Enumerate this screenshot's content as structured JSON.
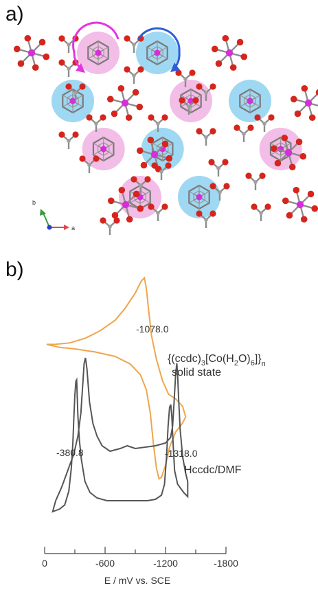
{
  "figure": {
    "panel_a_label": "a)",
    "panel_b_label": "b)"
  },
  "panel_a": {
    "axes_labels": {
      "b": "b",
      "a": "a"
    },
    "colors": {
      "oxygen": "#d6251c",
      "cobalt": "#d52fd9",
      "bond": "#8c8c8c",
      "pink_disc": "#f2bde6",
      "blue_disc": "#9fd8f2",
      "pink_arrow": "#e335e0",
      "blue_arrow": "#2b5fd9",
      "axis_b": "#3a9a3a",
      "axis_a": "#e04848",
      "axis_c": "#2a3fd0"
    },
    "discs": [
      {
        "color": "pink",
        "row": 0,
        "col": 0
      },
      {
        "color": "blue",
        "row": 0,
        "col": 1
      },
      {
        "color": "blue",
        "row": 1,
        "col": 0
      },
      {
        "color": "pink",
        "row": 1,
        "col": 1
      },
      {
        "color": "blue",
        "row": 1,
        "col": 2
      },
      {
        "color": "pink",
        "row": 2,
        "col": 0
      },
      {
        "color": "blue",
        "row": 2,
        "col": 1
      },
      {
        "color": "pink",
        "row": 2,
        "col": 2
      },
      {
        "color": "pink",
        "row": 3,
        "col": 0
      },
      {
        "color": "blue",
        "row": 3,
        "col": 1
      }
    ]
  },
  "chart_data": {
    "type": "line",
    "xlabel": "E / mV vs. SCE",
    "x_ticks": [
      "0",
      "-600",
      "-1200",
      "-1800"
    ],
    "x_tick_values": [
      0,
      -600,
      -1200,
      -1800
    ],
    "xlim": [
      0,
      -1800
    ],
    "series": [
      {
        "name": "{(ccdc)3[Co(H2O)6]}n solid state",
        "legend_parts": {
          "pre": "{(ccdc)",
          "sub1": "3",
          "mid1": "[Co(H",
          "sub2": "2",
          "mid2": "O)",
          "sub3": "6",
          "post": "]}",
          "sub4": "n"
        },
        "legend_line2": "solid state",
        "color": "#f0a54a",
        "annotation": "-1078.0",
        "points": [
          [
            -20,
            -12
          ],
          [
            -100,
            -12
          ],
          [
            -250,
            -11
          ],
          [
            -400,
            -8
          ],
          [
            -550,
            -3
          ],
          [
            -700,
            4
          ],
          [
            -800,
            12
          ],
          [
            -900,
            22
          ],
          [
            -960,
            30
          ],
          [
            -990,
            32
          ],
          [
            -1010,
            25
          ],
          [
            -1030,
            12
          ],
          [
            -1060,
            -6
          ],
          [
            -1110,
            -22
          ],
          [
            -1170,
            -36
          ],
          [
            -1230,
            -45
          ],
          [
            -1300,
            -48
          ],
          [
            -1370,
            -53
          ],
          [
            -1400,
            -60
          ],
          [
            -1370,
            -64
          ],
          [
            -1300,
            -70
          ],
          [
            -1240,
            -80
          ],
          [
            -1200,
            -92
          ],
          [
            -1160,
            -100
          ],
          [
            -1135,
            -101
          ],
          [
            -1110,
            -94
          ],
          [
            -1080,
            -78
          ],
          [
            -1050,
            -58
          ],
          [
            -1010,
            -42
          ],
          [
            -950,
            -32
          ],
          [
            -850,
            -25
          ],
          [
            -700,
            -20
          ],
          [
            -500,
            -17
          ],
          [
            -300,
            -15
          ],
          [
            -150,
            -14
          ],
          [
            -20,
            -12
          ]
        ]
      },
      {
        "name": "Hccdc/DMF",
        "color": "#555555",
        "annotations": [
          "-380.8",
          "-1318.0"
        ],
        "points": [
          [
            -80,
            0
          ],
          [
            -150,
            2
          ],
          [
            -200,
            5
          ],
          [
            -240,
            15
          ],
          [
            -265,
            32
          ],
          [
            -280,
            50
          ],
          [
            -290,
            68
          ],
          [
            -300,
            85
          ],
          [
            -310,
            95
          ],
          [
            -318,
            96
          ],
          [
            -322,
            88
          ],
          [
            -330,
            70
          ],
          [
            -345,
            52
          ],
          [
            -365,
            38
          ],
          [
            -400,
            22
          ],
          [
            -450,
            14
          ],
          [
            -520,
            10
          ],
          [
            -620,
            8
          ],
          [
            -740,
            8
          ],
          [
            -880,
            8
          ],
          [
            -1020,
            8
          ],
          [
            -1100,
            9
          ],
          [
            -1160,
            12
          ],
          [
            -1190,
            20
          ],
          [
            -1210,
            40
          ],
          [
            -1225,
            62
          ],
          [
            -1240,
            76
          ],
          [
            -1252,
            78
          ],
          [
            -1262,
            70
          ],
          [
            -1275,
            50
          ],
          [
            -1290,
            30
          ],
          [
            -1320,
            20
          ],
          [
            -1380,
            14
          ],
          [
            -1420,
            11
          ],
          [
            -1420,
            22
          ],
          [
            -1400,
            28
          ],
          [
            -1370,
            40
          ],
          [
            -1345,
            60
          ],
          [
            -1330,
            82
          ],
          [
            -1320,
            100
          ],
          [
            -1312,
            108
          ],
          [
            -1300,
            100
          ],
          [
            -1285,
            80
          ],
          [
            -1270,
            62
          ],
          [
            -1250,
            54
          ],
          [
            -1200,
            50
          ],
          [
            -1100,
            48
          ],
          [
            -900,
            46
          ],
          [
            -820,
            48
          ],
          [
            -750,
            46
          ],
          [
            -650,
            44
          ],
          [
            -570,
            48
          ],
          [
            -520,
            55
          ],
          [
            -480,
            64
          ],
          [
            -445,
            80
          ],
          [
            -420,
            104
          ],
          [
            -405,
            112
          ],
          [
            -392,
            108
          ],
          [
            -378,
            92
          ],
          [
            -360,
            72
          ],
          [
            -330,
            55
          ],
          [
            -290,
            42
          ],
          [
            -230,
            30
          ],
          [
            -170,
            18
          ],
          [
            -110,
            8
          ],
          [
            -80,
            0
          ]
        ]
      }
    ]
  }
}
